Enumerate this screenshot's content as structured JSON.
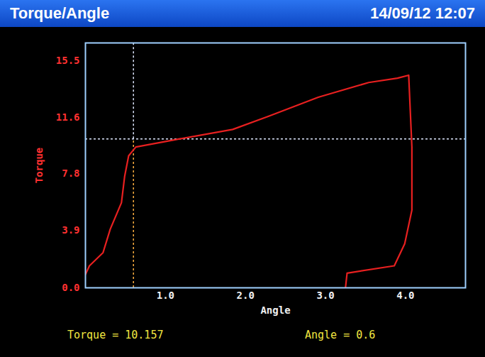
{
  "chart_data": {
    "type": "line",
    "title": "Torque/Angle",
    "timestamp": "14/09/12 12:07",
    "x_label": "Angle",
    "y_label": "Torque",
    "xlim": [
      0,
      4.75
    ],
    "ylim": [
      0,
      16.7
    ],
    "xticks": [
      {
        "value": 1,
        "label": "1.0"
      },
      {
        "value": 2,
        "label": "2.0"
      },
      {
        "value": 3,
        "label": "3.0"
      },
      {
        "value": 4,
        "label": "4.0"
      }
    ],
    "yticks": [
      {
        "value": 0,
        "label": "0.0"
      },
      {
        "value": 3.9,
        "label": "3.9"
      },
      {
        "value": 7.8,
        "label": "7.8"
      },
      {
        "value": 11.6,
        "label": "11.6"
      },
      {
        "value": 15.5,
        "label": "15.5"
      }
    ],
    "grid": false,
    "series": [
      {
        "name": "Torque",
        "color": "#e82020",
        "x": [
          0,
          0.05,
          0.22,
          0.31,
          0.45,
          0.49,
          0.54,
          0.63,
          1.12,
          1.84,
          2.29,
          2.91,
          3.54,
          3.9,
          4.04,
          4.08,
          4.08,
          3.99,
          3.86,
          3.27,
          3.25
        ],
        "values": [
          0.9,
          1.5,
          2.4,
          4.0,
          5.8,
          7.6,
          9.0,
          9.6,
          10.1,
          10.8,
          11.7,
          13.0,
          14.0,
          14.3,
          14.5,
          9.6,
          5.3,
          3.0,
          1.5,
          1.0,
          0
        ]
      }
    ],
    "cursor": {
      "x": 0.6,
      "y": 10.157,
      "labels": [
        "Torque = 10.157",
        "Angle = 0.6"
      ]
    }
  }
}
